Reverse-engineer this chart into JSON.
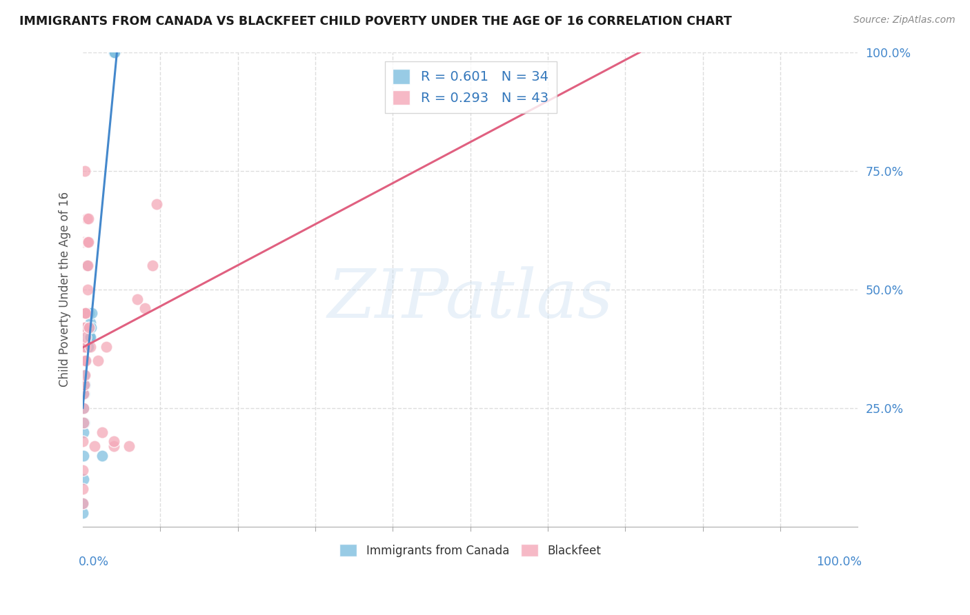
{
  "title": "IMMIGRANTS FROM CANADA VS BLACKFEET CHILD POVERTY UNDER THE AGE OF 16 CORRELATION CHART",
  "source": "Source: ZipAtlas.com",
  "ylabel": "Child Poverty Under the Age of 16",
  "canada_color": "#7fbfdf",
  "blackfeet_color": "#f4a8b8",
  "canada_line_color": "#4488cc",
  "blackfeet_line_color": "#e06080",
  "watermark": "ZIPatlas",
  "canada_R": "0.601",
  "canada_N": "34",
  "blackfeet_R": "0.293",
  "blackfeet_N": "43",
  "legend_labels_bottom": [
    "Immigrants from Canada",
    "Blackfeet"
  ],
  "canada_points_x": [
    0.0,
    0.0,
    0.001,
    0.001,
    0.001,
    0.001,
    0.002,
    0.002,
    0.002,
    0.003,
    0.003,
    0.003,
    0.003,
    0.004,
    0.004,
    0.005,
    0.005,
    0.005,
    0.006,
    0.006,
    0.007,
    0.007,
    0.008,
    0.008,
    0.009,
    0.009,
    0.01,
    0.01,
    0.011,
    0.012,
    0.025,
    0.04,
    0.04,
    0.041
  ],
  "canada_points_y": [
    0.03,
    0.05,
    0.1,
    0.15,
    0.2,
    0.25,
    0.22,
    0.28,
    0.32,
    0.3,
    0.35,
    0.38,
    0.42,
    0.35,
    0.4,
    0.38,
    0.42,
    0.45,
    0.55,
    0.6,
    0.38,
    0.42,
    0.4,
    0.45,
    0.4,
    0.42,
    0.4,
    0.43,
    0.42,
    0.45,
    0.15,
    1.0,
    1.0,
    1.0
  ],
  "blackfeet_points_x": [
    0.0,
    0.0,
    0.0,
    0.0,
    0.001,
    0.001,
    0.001,
    0.001,
    0.001,
    0.002,
    0.002,
    0.002,
    0.002,
    0.002,
    0.003,
    0.003,
    0.003,
    0.003,
    0.003,
    0.004,
    0.004,
    0.004,
    0.005,
    0.005,
    0.005,
    0.006,
    0.006,
    0.006,
    0.007,
    0.007,
    0.008,
    0.01,
    0.015,
    0.02,
    0.025,
    0.03,
    0.04,
    0.04,
    0.06,
    0.07,
    0.08,
    0.09,
    0.095
  ],
  "blackfeet_points_y": [
    0.05,
    0.08,
    0.12,
    0.18,
    0.22,
    0.25,
    0.28,
    0.35,
    0.42,
    0.3,
    0.35,
    0.38,
    0.45,
    0.6,
    0.32,
    0.38,
    0.42,
    0.45,
    0.75,
    0.35,
    0.4,
    0.45,
    0.55,
    0.6,
    0.65,
    0.5,
    0.55,
    0.6,
    0.6,
    0.65,
    0.42,
    0.38,
    0.17,
    0.35,
    0.2,
    0.38,
    0.17,
    0.18,
    0.17,
    0.48,
    0.46,
    0.55,
    0.68
  ],
  "xmin": 0.0,
  "xmax": 1.0,
  "ymin": 0.0,
  "ymax": 1.0,
  "right_yticks": [
    0.25,
    0.5,
    0.75,
    1.0
  ],
  "right_yticklabels": [
    "25.0%",
    "50.0%",
    "75.0%",
    "100.0%"
  ],
  "grid_color": "#dddddd",
  "grid_linestyle": "--"
}
